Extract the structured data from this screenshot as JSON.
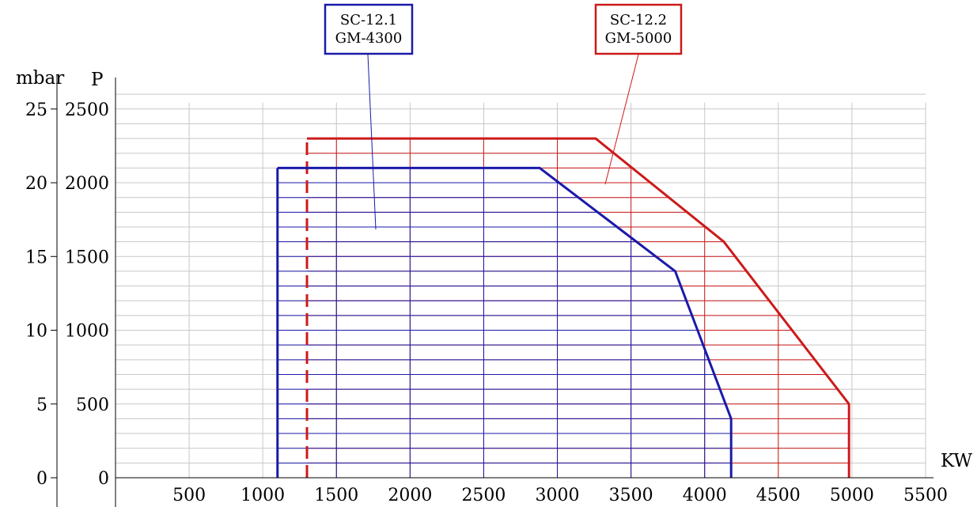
{
  "chart_data": {
    "type": "area",
    "title": "",
    "x_unit": "KW",
    "y_unit_left": "mbar",
    "y_unit_right": "P",
    "xlim": [
      0,
      5500
    ],
    "ylim": [
      0,
      2500
    ],
    "x_ticks": [
      "500",
      "1000",
      "1500",
      "2000",
      "2500",
      "3000",
      "3500",
      "4000",
      "4500",
      "5000",
      "5500"
    ],
    "y_ticks_mbar": [
      "0",
      "5",
      "10",
      "15",
      "20",
      "25"
    ],
    "y_ticks_p": [
      "0",
      "500",
      "1000",
      "1500",
      "2000",
      "2500"
    ],
    "grid": true,
    "colors": {
      "blue": "#1a1aaa",
      "red": "#cc1a1a",
      "grid": "#c8c8c8"
    },
    "series": [
      {
        "name_lines": [
          "SC-12.2",
          "GM-5000"
        ],
        "color": "red",
        "points": [
          [
            1300,
            0
          ],
          [
            1300,
            2300
          ],
          [
            3260,
            2300
          ],
          [
            4130,
            1600
          ],
          [
            4980,
            500
          ],
          [
            4980,
            0
          ]
        ]
      },
      {
        "name_lines": [
          "SC-12.1",
          "GM-4300"
        ],
        "color": "blue",
        "points": [
          [
            1100,
            0
          ],
          [
            1100,
            2100
          ],
          [
            2880,
            2100
          ],
          [
            3800,
            1400
          ],
          [
            4180,
            400
          ],
          [
            4180,
            0
          ]
        ]
      }
    ]
  }
}
